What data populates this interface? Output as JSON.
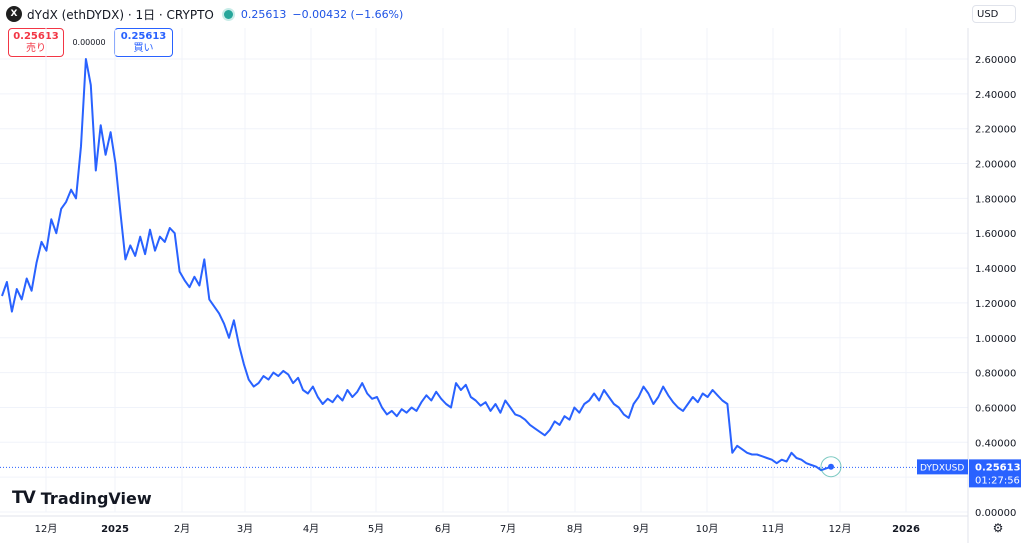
{
  "header": {
    "title": "dYdX (ethDYDX) · 1日 · CRYPTO",
    "logo_letter": "X",
    "price": "0.25613",
    "change": "−0.00432 (−1.66%)"
  },
  "trade": {
    "sell_value": "0.25613",
    "sell_label": "売り",
    "spread": "0.00000",
    "buy_value": "0.25613",
    "buy_label": "買い"
  },
  "currency": "USD",
  "brand": "TradingView",
  "price_tag": {
    "symbol": "DYDXUSD",
    "value": "0.25613",
    "countdown": "01:27:56"
  },
  "colors": {
    "line": "#2962ff",
    "tag_bg": "#2962ff",
    "last_price_line": "#2962ff"
  },
  "chart_data": {
    "type": "line",
    "symbol": "DYDXUSD",
    "interval": "1D",
    "ylim": [
      0,
      2.8
    ],
    "y_ticks": [
      "0.00000",
      "0.20000",
      "0.40000",
      "0.60000",
      "0.80000",
      "1.00000",
      "1.20000",
      "1.40000",
      "1.60000",
      "1.80000",
      "2.00000",
      "2.20000",
      "2.40000",
      "2.60000"
    ],
    "x_ticks": [
      "12月",
      "2025",
      "2月",
      "3月",
      "4月",
      "5月",
      "6月",
      "7月",
      "8月",
      "9月",
      "10月",
      "11月",
      "12月",
      "2026"
    ],
    "grid": true,
    "last_value": 0.25613,
    "series": [
      {
        "values": [
          1.24,
          1.32,
          1.15,
          1.28,
          1.22,
          1.34,
          1.27,
          1.43,
          1.55,
          1.5,
          1.68,
          1.6,
          1.74,
          1.78,
          1.85,
          1.8,
          2.1,
          2.6,
          2.45,
          1.96,
          2.22,
          2.05,
          2.18,
          2.0,
          1.72,
          1.45,
          1.53,
          1.47,
          1.58,
          1.48,
          1.62,
          1.5,
          1.58,
          1.55,
          1.63,
          1.6,
          1.38,
          1.33,
          1.29,
          1.35,
          1.3,
          1.45,
          1.22,
          1.18,
          1.14,
          1.08,
          1.0,
          1.1,
          0.96,
          0.85,
          0.76,
          0.72,
          0.74,
          0.78,
          0.76,
          0.8,
          0.78,
          0.81,
          0.79,
          0.74,
          0.77,
          0.7,
          0.68,
          0.72,
          0.66,
          0.62,
          0.65,
          0.63,
          0.67,
          0.64,
          0.7,
          0.66,
          0.69,
          0.74,
          0.68,
          0.65,
          0.66,
          0.6,
          0.56,
          0.58,
          0.55,
          0.59,
          0.57,
          0.6,
          0.58,
          0.63,
          0.67,
          0.64,
          0.69,
          0.65,
          0.62,
          0.6,
          0.74,
          0.7,
          0.73,
          0.66,
          0.64,
          0.61,
          0.63,
          0.58,
          0.62,
          0.57,
          0.64,
          0.6,
          0.56,
          0.55,
          0.53,
          0.5,
          0.48,
          0.46,
          0.44,
          0.47,
          0.52,
          0.5,
          0.55,
          0.53,
          0.6,
          0.57,
          0.62,
          0.64,
          0.68,
          0.64,
          0.7,
          0.66,
          0.62,
          0.6,
          0.56,
          0.54,
          0.62,
          0.66,
          0.72,
          0.68,
          0.62,
          0.66,
          0.72,
          0.67,
          0.63,
          0.6,
          0.58,
          0.62,
          0.66,
          0.63,
          0.68,
          0.66,
          0.7,
          0.67,
          0.64,
          0.62,
          0.34,
          0.38,
          0.36,
          0.34,
          0.33,
          0.33,
          0.32,
          0.31,
          0.3,
          0.28,
          0.3,
          0.29,
          0.34,
          0.31,
          0.3,
          0.28,
          0.27,
          0.26,
          0.24,
          0.25,
          0.26
        ]
      }
    ]
  }
}
